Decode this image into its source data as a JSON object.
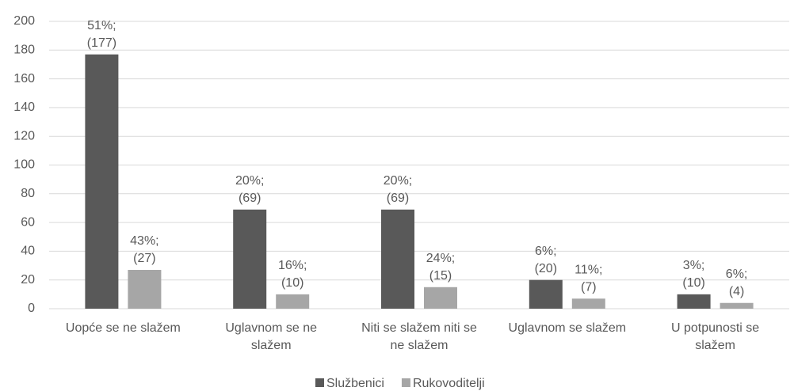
{
  "chart_data": {
    "type": "bar",
    "categories": [
      [
        "Uopće se ne slažem"
      ],
      [
        "Uglavnom se ne",
        "slažem"
      ],
      [
        "Niti se slažem niti se",
        "ne slažem"
      ],
      [
        "Uglavnom se slažem"
      ],
      [
        "U potpunosti se",
        "slažem"
      ]
    ],
    "series": [
      {
        "name": "Službenici",
        "color": "#595959",
        "values": [
          177,
          69,
          69,
          20,
          10
        ],
        "value_labels": [
          [
            "51%;",
            "(177)"
          ],
          [
            "20%;",
            "(69)"
          ],
          [
            "20%;",
            "(69)"
          ],
          [
            "6%;",
            "(20)"
          ],
          [
            "3%;",
            "(10)"
          ]
        ]
      },
      {
        "name": "Rukovoditelji",
        "color": "#a6a6a6",
        "values": [
          27,
          10,
          15,
          7,
          4
        ],
        "value_labels": [
          [
            "43%;",
            "(27)"
          ],
          [
            "16%;",
            "(10)"
          ],
          [
            "24%;",
            "(15)"
          ],
          [
            "11%;",
            "(7)"
          ],
          [
            "6%;",
            "(4)"
          ]
        ]
      }
    ],
    "ylim": [
      0,
      200
    ],
    "yticks": [
      0,
      20,
      40,
      60,
      80,
      100,
      120,
      140,
      160,
      180,
      200
    ],
    "grid": true,
    "legend": "bottom"
  }
}
